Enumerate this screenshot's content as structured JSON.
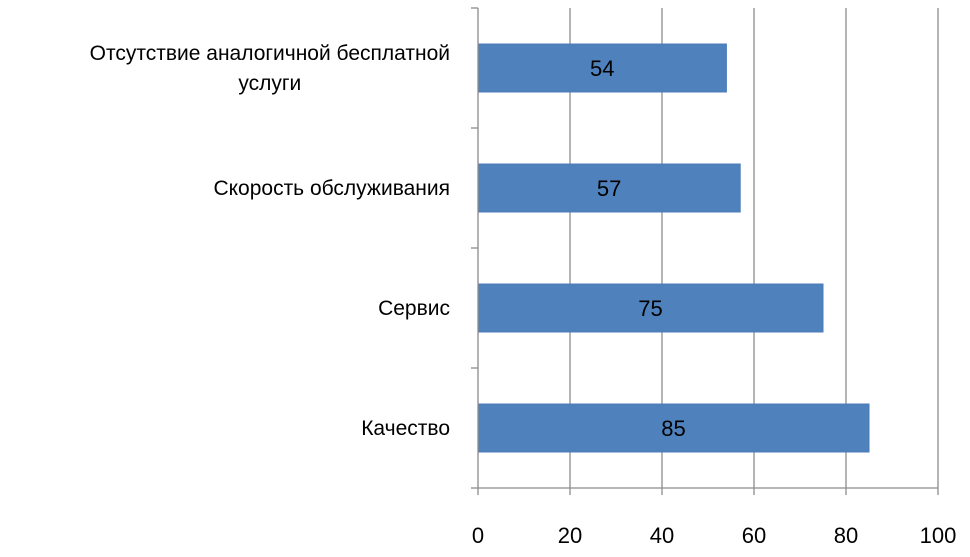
{
  "chart_data": {
    "type": "bar",
    "orientation": "horizontal",
    "categories": [
      "Отсутствие аналогичной бесплатной услуги",
      "Скорость обслуживания",
      "Сервис",
      "Качество"
    ],
    "category_lines": [
      [
        "Отсутствие аналогичной бесплатной",
        "услуги"
      ],
      [
        "Скорость обслуживания"
      ],
      [
        "Сервис"
      ],
      [
        "Качество"
      ]
    ],
    "values": [
      54,
      57,
      75,
      85
    ],
    "xlim": [
      0,
      100
    ],
    "xticks": [
      0,
      20,
      40,
      60,
      80,
      100
    ],
    "grid": true,
    "legend": "none",
    "data_labels": true,
    "bar_color": "#4F81BD",
    "grid_color": "#8C8C8C"
  }
}
